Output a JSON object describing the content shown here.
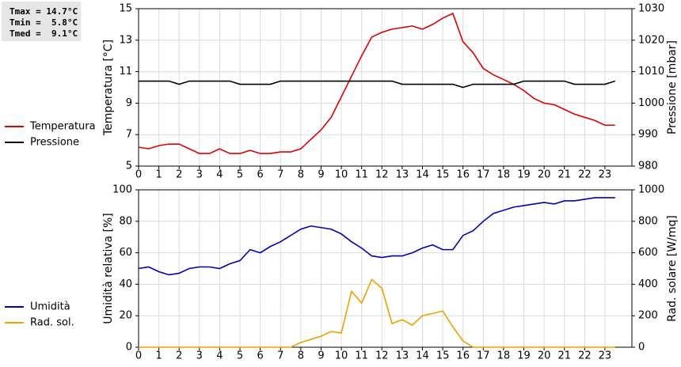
{
  "stats": [
    "Tmax = 14.7°C",
    "Tmin =  5.8°C",
    "Tmed =  9.1°C"
  ],
  "chart_data": [
    {
      "type": "line",
      "x": [
        0,
        0.5,
        1,
        1.5,
        2,
        2.5,
        3,
        3.5,
        4,
        4.5,
        5,
        5.5,
        6,
        6.5,
        7,
        7.5,
        8,
        8.5,
        9,
        9.5,
        10,
        10.5,
        11,
        11.5,
        12,
        12.5,
        13,
        13.5,
        14,
        14.5,
        15,
        15.5,
        16,
        16.5,
        17,
        17.5,
        18,
        18.5,
        19,
        19.5,
        20,
        20.5,
        21,
        21.5,
        22,
        22.5,
        23,
        23.5
      ],
      "xlim": [
        0,
        24.33
      ],
      "xticks": [
        0,
        1,
        2,
        3,
        4,
        5,
        6,
        7,
        8,
        9,
        10,
        11,
        12,
        13,
        14,
        15,
        16,
        17,
        18,
        19,
        20,
        21,
        22,
        23
      ],
      "ylabel": "Temperatura [°C]",
      "ylim": [
        5,
        15
      ],
      "yticks": [
        5,
        7,
        9,
        11,
        13,
        15
      ],
      "y2label": "Pressione [mbar]",
      "y2lim": [
        980,
        1030
      ],
      "y2ticks": [
        980,
        990,
        1000,
        1010,
        1020,
        1030
      ],
      "grid": true,
      "series": [
        {
          "name": "Temperatura",
          "color": "#dd0000",
          "values": [
            6.2,
            6.1,
            6.3,
            6.4,
            6.4,
            6.1,
            5.8,
            5.8,
            6.1,
            5.8,
            5.8,
            6.0,
            5.8,
            5.8,
            5.9,
            5.9,
            6.1,
            6.7,
            7.3,
            8.1,
            9.4,
            10.7,
            12.0,
            13.2,
            13.5,
            13.7,
            13.8,
            13.9,
            13.7,
            14.0,
            14.4,
            14.7,
            12.9,
            12.2,
            11.2,
            10.8,
            10.5,
            10.2,
            9.8,
            9.3,
            9.0,
            8.9,
            8.6,
            8.3,
            8.1,
            7.9,
            7.6,
            7.6
          ]
        },
        {
          "name": "Pressione",
          "color": "#000000",
          "axis": "y2",
          "values": [
            1007,
            1007,
            1007,
            1007,
            1006,
            1007,
            1007,
            1007,
            1007,
            1007,
            1006,
            1006,
            1006,
            1006,
            1007,
            1007,
            1007,
            1007,
            1007,
            1007,
            1007,
            1007,
            1007,
            1007,
            1007,
            1007,
            1006,
            1006,
            1006,
            1006,
            1006,
            1006,
            1005,
            1006,
            1006,
            1006,
            1006,
            1006,
            1007,
            1007,
            1007,
            1007,
            1007,
            1006,
            1006,
            1006,
            1006,
            1007
          ]
        }
      ]
    },
    {
      "type": "line",
      "x": [
        0,
        0.5,
        1,
        1.5,
        2,
        2.5,
        3,
        3.5,
        4,
        4.5,
        5,
        5.5,
        6,
        6.5,
        7,
        7.5,
        8,
        8.5,
        9,
        9.5,
        10,
        10.5,
        11,
        11.5,
        12,
        12.5,
        13,
        13.5,
        14,
        14.5,
        15,
        15.5,
        16,
        16.5,
        17,
        17.5,
        18,
        18.5,
        19,
        19.5,
        20,
        20.5,
        21,
        21.5,
        22,
        22.5,
        23,
        23.5
      ],
      "xlim": [
        0,
        24.33
      ],
      "xticks": [
        0,
        1,
        2,
        3,
        4,
        5,
        6,
        7,
        8,
        9,
        10,
        11,
        12,
        13,
        14,
        15,
        16,
        17,
        18,
        19,
        20,
        21,
        22,
        23
      ],
      "ylabel": "Umidità relativa [%]",
      "ylim": [
        0,
        100
      ],
      "yticks": [
        0,
        20,
        40,
        60,
        80,
        100
      ],
      "y2label": "Rad. solare [W/mq]",
      "y2lim": [
        0,
        1000
      ],
      "y2ticks": [
        0,
        200,
        400,
        600,
        800,
        1000
      ],
      "grid": true,
      "series": [
        {
          "name": "Umidità",
          "color": "#0000bb",
          "values": [
            50,
            51,
            48,
            46,
            47,
            50,
            51,
            51,
            50,
            53,
            55,
            62,
            60,
            64,
            67,
            71,
            75,
            77,
            76,
            75,
            72,
            67,
            63,
            58,
            57,
            58,
            58,
            60,
            63,
            65,
            62,
            62,
            71,
            74,
            80,
            85,
            87,
            89,
            90,
            91,
            92,
            91,
            93,
            93,
            94,
            95,
            95,
            95
          ]
        },
        {
          "name": "Rad. sol.",
          "color": "#f0a000",
          "axis": "y2",
          "values": [
            0,
            0,
            0,
            0,
            0,
            0,
            0,
            0,
            0,
            0,
            0,
            0,
            0,
            0,
            0,
            0,
            30,
            50,
            70,
            100,
            90,
            355,
            280,
            430,
            375,
            150,
            175,
            140,
            200,
            215,
            230,
            130,
            40,
            0,
            0,
            0,
            0,
            0,
            0,
            0,
            0,
            0,
            0,
            0,
            0,
            0,
            0,
            0
          ]
        }
      ]
    }
  ]
}
